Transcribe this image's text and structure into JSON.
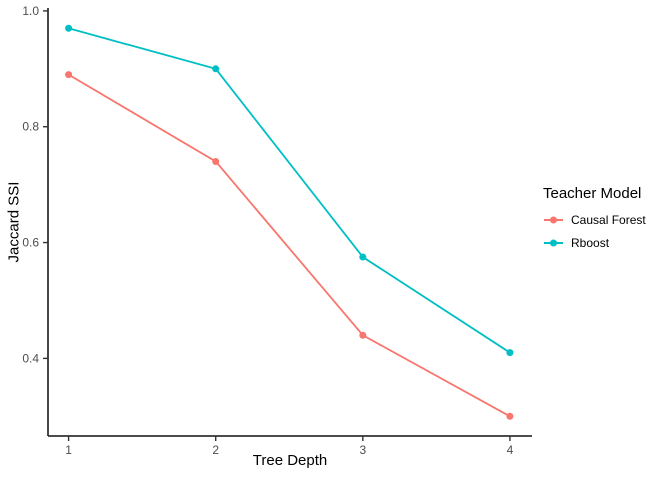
{
  "chart_data": {
    "type": "line",
    "title": "",
    "xlabel": "Tree Depth",
    "ylabel": "Jaccard SSI",
    "legend_title": "Teacher Model",
    "legend_position": "right",
    "grid": false,
    "x": [
      1,
      2,
      3,
      4
    ],
    "series": [
      {
        "name": "Causal Forest",
        "color": "#F8766D",
        "values": [
          0.89,
          0.74,
          0.44,
          0.3
        ]
      },
      {
        "name": "Rboost",
        "color": "#00BFC4",
        "values": [
          0.97,
          0.9,
          0.575,
          0.41
        ]
      }
    ],
    "x_ticks": {
      "values": [
        1,
        2,
        3,
        4
      ],
      "labels": [
        "1",
        "2",
        "3",
        "4"
      ]
    },
    "y_ticks": {
      "values": [
        0.4,
        0.6,
        0.8,
        1.0
      ],
      "labels": [
        "0.4",
        "0.6",
        "0.8",
        "1.0"
      ]
    },
    "xlim": [
      0.86,
      4.15
    ],
    "ylim": [
      0.266,
      1.005
    ],
    "colors": {
      "axis_line": "#333333",
      "tick_mark": "#333333",
      "tick_label": "#4D4D4D",
      "text": "#000000",
      "background": "#FFFFFF"
    }
  }
}
